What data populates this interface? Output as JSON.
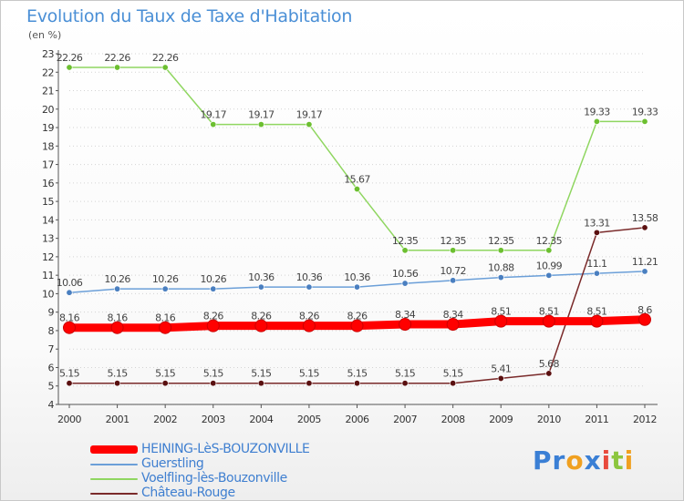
{
  "title": "Evolution du Taux de Taxe d'Habitation",
  "subtitle": "(en %)",
  "logo": {
    "text": "Proxiti",
    "letters": [
      {
        "ch": "P",
        "color": "#3a7fd5"
      },
      {
        "ch": "r",
        "color": "#3a7fd5"
      },
      {
        "ch": "o",
        "color": "#f0a020"
      },
      {
        "ch": "x",
        "color": "#3a7fd5"
      },
      {
        "ch": "i",
        "color": "#e84a3c"
      },
      {
        "ch": "t",
        "color": "#8cc63e"
      },
      {
        "ch": "i",
        "color": "#f0a020"
      }
    ]
  },
  "chart_data": {
    "type": "line",
    "title": "Evolution du Taux de Taxe d'Habitation",
    "ylabel": "(en %)",
    "xlabel": "",
    "x": [
      "2000",
      "2001",
      "2002",
      "2003",
      "2004",
      "2005",
      "2006",
      "2007",
      "2008",
      "2009",
      "2010",
      "2011",
      "2012"
    ],
    "ylim": [
      4,
      23
    ],
    "yticks": [
      4,
      5,
      6,
      7,
      8,
      9,
      10,
      11,
      12,
      13,
      14,
      15,
      16,
      17,
      18,
      19,
      20,
      21,
      22,
      23
    ],
    "legend_position": "bottom-left",
    "series": [
      {
        "name": "HEINING-LèS-BOUZONVILLE",
        "color": "#ff0000",
        "marker": "#ff0000",
        "width": 9,
        "values": [
          8.16,
          8.16,
          8.16,
          8.26,
          8.26,
          8.26,
          8.26,
          8.34,
          8.34,
          8.51,
          8.51,
          8.51,
          8.6
        ],
        "labels": [
          "8.16",
          "8.16",
          "8.16",
          "8.26",
          "8.26",
          "8.26",
          "8.26",
          "8.34",
          "8.34",
          "8.51",
          "8.51",
          "8.51",
          "8.6"
        ]
      },
      {
        "name": "Guerstling",
        "color": "#6b9fd8",
        "marker": "#4a7fc0",
        "width": 1.5,
        "values": [
          10.06,
          10.26,
          10.26,
          10.26,
          10.36,
          10.36,
          10.36,
          10.56,
          10.72,
          10.88,
          10.99,
          11.1,
          11.21
        ],
        "labels": [
          "10.06",
          "10.26",
          "10.26",
          "10.26",
          "10.36",
          "10.36",
          "10.36",
          "10.56",
          "10.72",
          "10.88",
          "10.99",
          "11.1",
          "11.21"
        ]
      },
      {
        "name": "Voelfling-lès-Bouzonville",
        "color": "#8fd660",
        "marker": "#6cbf30",
        "width": 1.5,
        "values": [
          22.26,
          22.26,
          22.26,
          19.17,
          19.17,
          19.17,
          15.67,
          12.35,
          12.35,
          12.35,
          12.35,
          19.33,
          19.33
        ],
        "labels": [
          "22.26",
          "22.26",
          "22.26",
          "19.17",
          "19.17",
          "19.17",
          "15.67",
          "12.35",
          "12.35",
          "12.35",
          "12.35",
          "19.33",
          "19.33"
        ]
      },
      {
        "name": "Château-Rouge",
        "color": "#7a2a2a",
        "marker": "#5a1010",
        "width": 1.5,
        "values": [
          5.15,
          5.15,
          5.15,
          5.15,
          5.15,
          5.15,
          5.15,
          5.15,
          5.15,
          5.41,
          5.68,
          13.31,
          13.58
        ],
        "labels": [
          "5.15",
          "5.15",
          "5.15",
          "5.15",
          "5.15",
          "5.15",
          "5.15",
          "5.15",
          "5.15",
          "5.41",
          "5.68",
          "13.31",
          "13.58"
        ]
      }
    ]
  }
}
